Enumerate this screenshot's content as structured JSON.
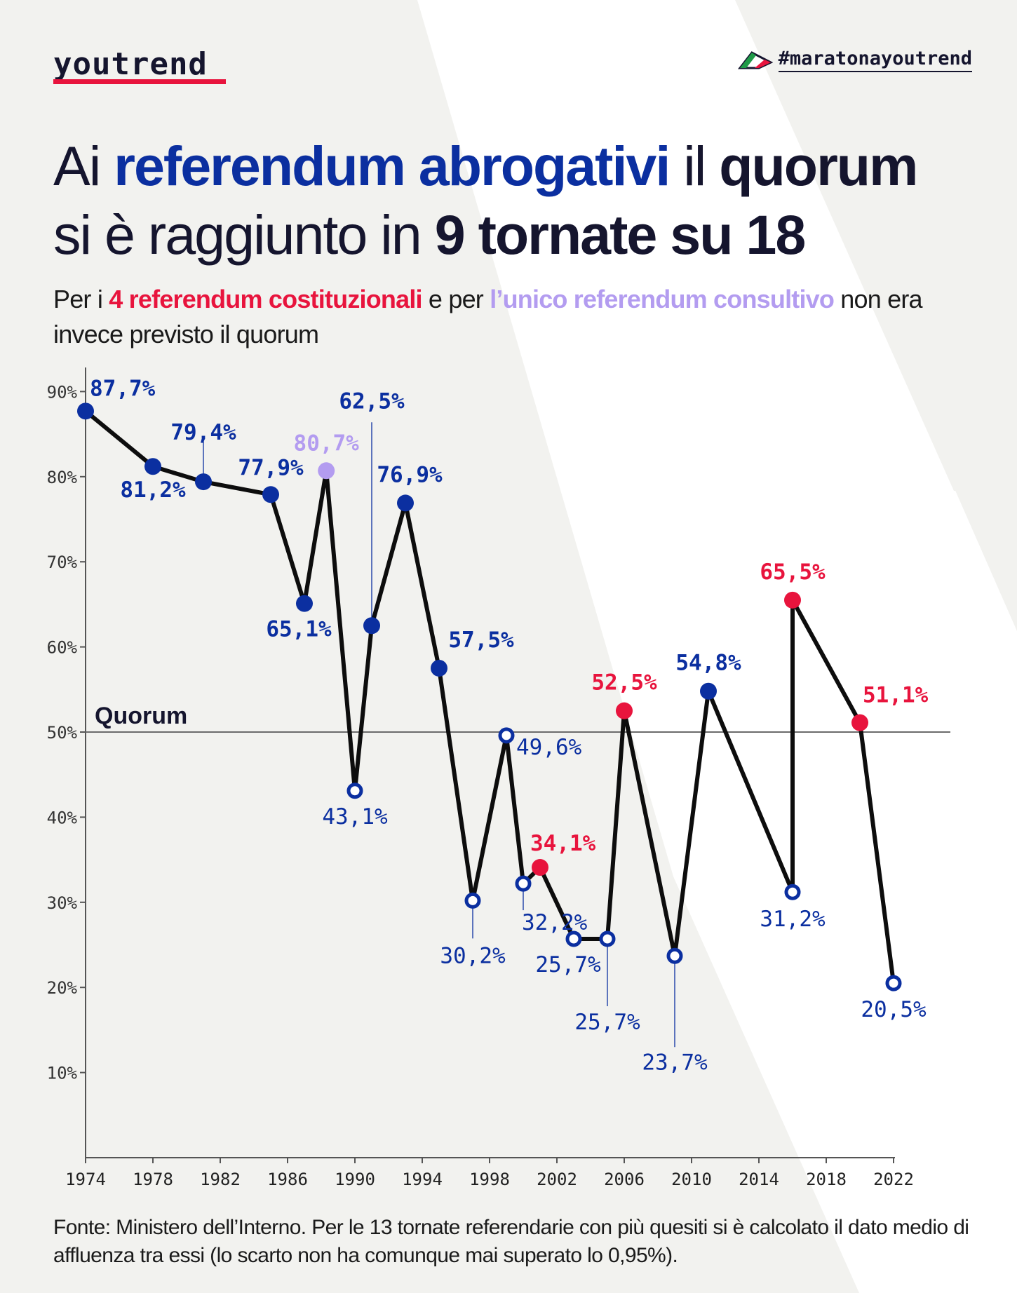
{
  "header": {
    "logo": "youtrend",
    "hashtag": "#maratonayoutrend"
  },
  "title": {
    "part1": "Ai ",
    "part2": "referendum abrogativi",
    "part3": " il ",
    "part4": "quorum",
    "part5": "si è raggiunto in ",
    "part6": "9 tornate su 18"
  },
  "subtitle": {
    "part1": "Per i ",
    "part2": "4 referendum costituzionali",
    "part3": " e per ",
    "part4": "l’unico referendum consultivo",
    "part5": " non era invece previsto il quorum"
  },
  "footer": {
    "text": "Fonte: Ministero dell’Interno. Per le 13 tornate referendarie con più quesiti si è calcolato il dato medio di affluenza tra essi (lo scarto non ha comunque mai superato lo 0,95%)."
  },
  "colors": {
    "abrogativo": "#0b2fa0",
    "costituzionale": "#e8143d",
    "consultivo": "#b39cf0",
    "line": "#0d0d0d"
  },
  "chart_data": {
    "type": "line",
    "x_ticks": [
      "1974",
      "1978",
      "1982",
      "1986",
      "1990",
      "1994",
      "1998",
      "2002",
      "2006",
      "2010",
      "2014",
      "2018",
      "2022"
    ],
    "y_ticks": [
      "10%",
      "20%",
      "30%",
      "40%",
      "50%",
      "60%",
      "70%",
      "80%",
      "90%"
    ],
    "xlim": [
      1974,
      2022
    ],
    "ylim": [
      0,
      92
    ],
    "quorum": {
      "value": 50,
      "label": "Quorum"
    },
    "points": [
      {
        "x": 1974,
        "y": 87.7,
        "label": "87,7%",
        "kind": "abrogativo",
        "quorum_reached": true
      },
      {
        "x": 1978,
        "y": 81.2,
        "label": "81,2%",
        "kind": "abrogativo",
        "quorum_reached": true
      },
      {
        "x": 1981,
        "y": 79.4,
        "label": "79,4%",
        "kind": "abrogativo",
        "quorum_reached": true
      },
      {
        "x": 1985,
        "y": 77.9,
        "label": "77,9%",
        "kind": "abrogativo",
        "quorum_reached": true
      },
      {
        "x": 1987,
        "y": 65.1,
        "label": "65,1%",
        "kind": "abrogativo",
        "quorum_reached": true
      },
      {
        "x": 1988.3,
        "y": 80.7,
        "label": "80,7%",
        "kind": "consultivo",
        "quorum_reached": null
      },
      {
        "x": 1990,
        "y": 43.1,
        "label": "43,1%",
        "kind": "abrogativo",
        "quorum_reached": false
      },
      {
        "x": 1991,
        "y": 62.5,
        "label": "62,5%",
        "kind": "abrogativo",
        "quorum_reached": true
      },
      {
        "x": 1993,
        "y": 76.9,
        "label": "76,9%",
        "kind": "abrogativo",
        "quorum_reached": true
      },
      {
        "x": 1995,
        "y": 57.5,
        "label": "57,5%",
        "kind": "abrogativo",
        "quorum_reached": true
      },
      {
        "x": 1997,
        "y": 30.2,
        "label": "30,2%",
        "kind": "abrogativo",
        "quorum_reached": false
      },
      {
        "x": 1999,
        "y": 49.6,
        "label": "49,6%",
        "kind": "abrogativo",
        "quorum_reached": false
      },
      {
        "x": 2000,
        "y": 32.2,
        "label": "32,2%",
        "kind": "abrogativo",
        "quorum_reached": false
      },
      {
        "x": 2001,
        "y": 34.1,
        "label": "34,1%",
        "kind": "costituzionale",
        "quorum_reached": null
      },
      {
        "x": 2003,
        "y": 25.7,
        "label": "25,7%",
        "kind": "abrogativo",
        "quorum_reached": false
      },
      {
        "x": 2005,
        "y": 25.7,
        "label": "25,7%",
        "kind": "abrogativo",
        "quorum_reached": false
      },
      {
        "x": 2006,
        "y": 52.5,
        "label": "52,5%",
        "kind": "costituzionale",
        "quorum_reached": null
      },
      {
        "x": 2009,
        "y": 23.7,
        "label": "23,7%",
        "kind": "abrogativo",
        "quorum_reached": false
      },
      {
        "x": 2011,
        "y": 54.8,
        "label": "54,8%",
        "kind": "abrogativo",
        "quorum_reached": true
      },
      {
        "x": 2016,
        "y": 31.2,
        "label": "31,2%",
        "kind": "abrogativo",
        "quorum_reached": false
      },
      {
        "x": 2016,
        "y": 65.5,
        "label": "65,5%",
        "kind": "costituzionale",
        "quorum_reached": null
      },
      {
        "x": 2020,
        "y": 51.1,
        "label": "51,1%",
        "kind": "costituzionale",
        "quorum_reached": null
      },
      {
        "x": 2022,
        "y": 20.5,
        "label": "20,5%",
        "kind": "abrogativo",
        "quorum_reached": false
      }
    ],
    "grid": false,
    "legend": "none"
  }
}
